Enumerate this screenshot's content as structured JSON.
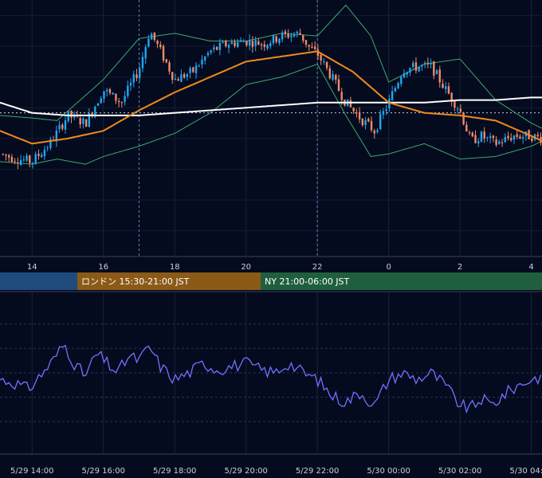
{
  "chart_data": [
    {
      "type": "candlestick",
      "title": "",
      "x_ticks": [
        "14",
        "16",
        "18",
        "20",
        "22",
        "0",
        "2",
        "4"
      ],
      "x_range_hours": [
        13.1,
        28.3
      ],
      "y_range": [
        0,
        100
      ],
      "overlays": [
        {
          "name": "",
          "kind": "moving-average",
          "color": "#f08a1c"
        },
        {
          "name": "",
          "kind": "moving-average-long",
          "color": "#ffffff"
        },
        {
          "name": "",
          "kind": "bollinger-bands",
          "color": "#3ea86a"
        }
      ],
      "current_price_line": 56,
      "session_markers": [
        17,
        22
      ],
      "ma_anchors": {
        "x": [
          13.1,
          14,
          15,
          16,
          17,
          18,
          19,
          20,
          21,
          22,
          23,
          24,
          25,
          26,
          27,
          28,
          28.3
        ],
        "y": [
          49,
          44,
          46,
          49,
          57,
          64,
          70,
          76,
          78,
          80,
          72,
          60,
          56,
          55,
          53,
          47,
          45
        ]
      },
      "ma_long_anchors": {
        "x": [
          13.1,
          14,
          15,
          16,
          17,
          18,
          19,
          20,
          21,
          22,
          23,
          24,
          25,
          26,
          27,
          28,
          28.3
        ],
        "y": [
          60,
          56,
          55,
          55,
          55,
          56,
          57,
          58,
          59,
          60,
          60,
          60,
          60,
          61,
          61,
          62,
          62
        ]
      },
      "bb_upper_anchors": {
        "x": [
          13.1,
          14,
          14.7,
          16,
          17,
          18,
          19,
          20,
          21,
          22,
          22.8,
          23.5,
          24,
          25,
          26,
          27,
          28,
          28.3
        ],
        "y": [
          55,
          54,
          53,
          69,
          85,
          87,
          84,
          84,
          87,
          86,
          98,
          86,
          68,
          75,
          77,
          61,
          52,
          50
        ]
      },
      "bb_lower_anchors": {
        "x": [
          13.1,
          14,
          14.7,
          15.5,
          16,
          17,
          18,
          19,
          20,
          21,
          22,
          22.8,
          23.5,
          24,
          25,
          26,
          27,
          28,
          28.3
        ],
        "y": [
          37,
          36,
          38,
          36,
          39,
          43,
          48,
          56,
          67,
          70,
          75,
          55,
          39,
          40,
          44,
          38,
          39,
          43,
          45
        ]
      },
      "price_path": {
        "x": [
          13.1,
          13.6,
          14.0,
          14.5,
          15.0,
          15.5,
          16.0,
          16.5,
          17.0,
          17.3,
          17.6,
          18.0,
          18.5,
          19.0,
          19.5,
          20.0,
          20.5,
          21.0,
          21.5,
          21.8,
          22.0,
          22.4,
          22.8,
          23.2,
          23.6,
          24.0,
          24.4,
          24.8,
          25.2,
          25.6,
          26.0,
          26.3,
          26.6,
          27.0,
          27.5,
          28.0,
          28.3
        ],
        "y": [
          40,
          38,
          37,
          44,
          55,
          52,
          65,
          60,
          73,
          88,
          80,
          69,
          72,
          80,
          83,
          84,
          83,
          86,
          87,
          81,
          79,
          70,
          60,
          54,
          49,
          60,
          73,
          74,
          74,
          65,
          57,
          45,
          47,
          44,
          47,
          47,
          46
        ]
      },
      "sessions": [
        {
          "label": "",
          "color": "#1f4b7c"
        },
        {
          "label": "ロンドン 15:30-21:00 JST",
          "color": "#8b5a16"
        },
        {
          "label": "NY 21:00-06:00 JST",
          "color": "#1f5f3e"
        }
      ]
    },
    {
      "type": "line",
      "title": "",
      "x_ticks": [
        "5/29 14:00",
        "5/29 16:00",
        "5/29 18:00",
        "5/29 20:00",
        "5/29 22:00",
        "5/30 00:00",
        "5/30 02:00",
        "5/30 04:00"
      ],
      "y_range": [
        0,
        100
      ],
      "series": [
        {
          "name": "",
          "color": "#6f73ff",
          "anchors_x": [
            13.1,
            13.5,
            13.9,
            14.3,
            14.6,
            14.9,
            15.2,
            15.5,
            15.8,
            16.1,
            16.4,
            16.7,
            17.0,
            17.3,
            17.6,
            18.0,
            18.4,
            18.8,
            19.2,
            19.6,
            20.0,
            20.4,
            20.8,
            21.2,
            21.6,
            22.0,
            22.4,
            22.8,
            23.2,
            23.6,
            24.0,
            24.4,
            24.8,
            25.2,
            25.6,
            26.0,
            26.3,
            26.6,
            26.9,
            27.2,
            27.6,
            28.0,
            28.3
          ],
          "anchors_y": [
            46,
            44,
            40,
            50,
            58,
            68,
            55,
            48,
            62,
            56,
            50,
            60,
            58,
            66,
            54,
            46,
            50,
            56,
            52,
            54,
            56,
            52,
            50,
            56,
            50,
            46,
            36,
            32,
            38,
            30,
            46,
            50,
            46,
            50,
            42,
            30,
            28,
            34,
            30,
            36,
            42,
            46,
            48
          ]
        }
      ]
    }
  ]
}
